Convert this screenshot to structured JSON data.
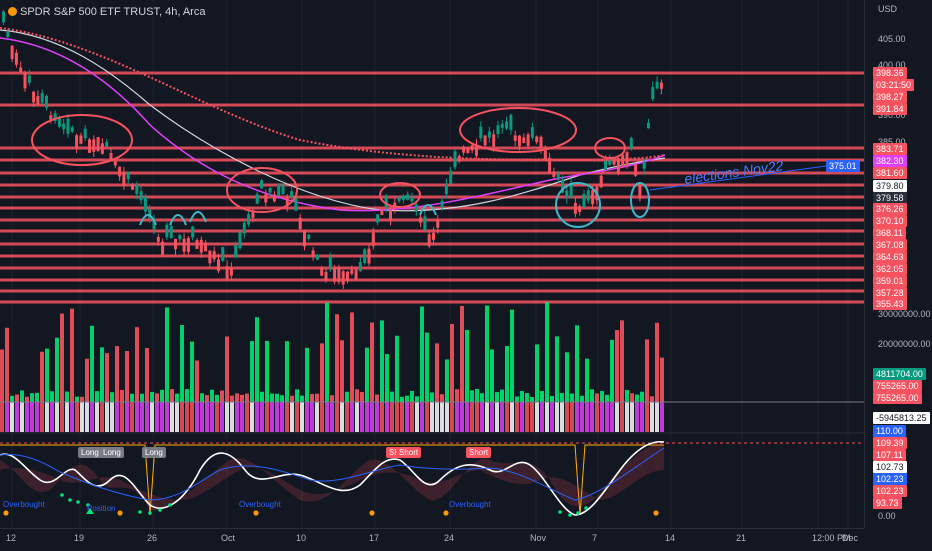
{
  "header": {
    "title": "SPDR S&P 500 ETF TRUST, 4h, Arca",
    "currency": "USD"
  },
  "annotation": {
    "text": "elections Nov22",
    "callout": "375.01"
  },
  "price_axis": [
    "405.00",
    "400.00",
    "390.00",
    "385.00"
  ],
  "price_tags": [
    {
      "label": "398.36",
      "bg": "#f7525f"
    },
    {
      "label": "03:21:50",
      "bg": "#f7525f"
    },
    {
      "label": "398.27",
      "bg": "#f7525f"
    },
    {
      "label": "391.84",
      "bg": "#f7525f"
    },
    {
      "label": "383.71",
      "bg": "#f7525f"
    },
    {
      "label": "382.30",
      "bg": "#e040fb"
    },
    {
      "label": "381.60",
      "bg": "#f7525f"
    },
    {
      "label": "379.80",
      "bg": "#ffffff",
      "color": "#131722"
    },
    {
      "label": "379.58",
      "bg": "#2a2e39"
    },
    {
      "label": "376.26",
      "bg": "#f7525f"
    },
    {
      "label": "370.10",
      "bg": "#f7525f"
    },
    {
      "label": "368.11",
      "bg": "#f7525f"
    },
    {
      "label": "367.08",
      "bg": "#f7525f"
    },
    {
      "label": "364.63",
      "bg": "#f7525f"
    },
    {
      "label": "362.05",
      "bg": "#f7525f"
    },
    {
      "label": "359.01",
      "bg": "#f7525f"
    },
    {
      "label": "357.28",
      "bg": "#f7525f"
    },
    {
      "label": "355.43",
      "bg": "#f7525f"
    }
  ],
  "volume_axis": [
    "30000000.00",
    "20000000.00"
  ],
  "volume_tags": [
    {
      "label": "4811704.00",
      "bg": "#089981"
    },
    {
      "label": "755265.00",
      "bg": "#f7525f"
    },
    {
      "label": "755265.00",
      "bg": "#f7525f"
    },
    {
      "label": "-5945813.25",
      "bg": "#ffffff",
      "color": "#131722"
    }
  ],
  "osc_tags": [
    {
      "label": "110.00",
      "bg": "#2962ff"
    },
    {
      "label": "109.39",
      "bg": "#f7525f"
    },
    {
      "label": "107.11",
      "bg": "#f7525f"
    },
    {
      "label": "102.73",
      "bg": "#ffffff",
      "color": "#131722"
    },
    {
      "label": "102.23",
      "bg": "#2962ff"
    },
    {
      "label": "102.23",
      "bg": "#f7525f"
    },
    {
      "label": "93.73",
      "bg": "#f7525f"
    }
  ],
  "osc_axis": [
    "0.00"
  ],
  "signals": [
    "Long",
    "Long",
    "Long",
    "Short",
    "Short",
    "Short",
    "Overbought",
    "Overbought",
    "Overbought",
    "Overbought",
    "Position"
  ],
  "time_axis": [
    "12",
    "19",
    "26",
    "Oct",
    "10",
    "17",
    "24",
    "Nov",
    "7",
    "14",
    "21",
    "12:00 PM",
    "Dec"
  ],
  "colors": {
    "bg": "#131722",
    "red": "#f7525f",
    "green": "#089981",
    "blue": "#2962ff",
    "magenta": "#e040fb",
    "cyan": "#3fb6c8"
  }
}
